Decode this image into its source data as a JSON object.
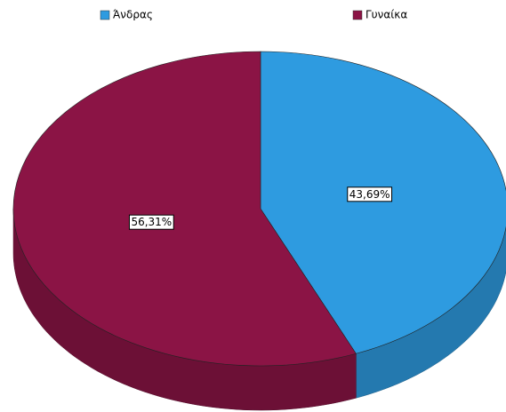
{
  "chart_data": {
    "type": "pie",
    "categories": [
      "Άνδρας",
      "Γυναίκα"
    ],
    "values": [
      43.69,
      56.31
    ],
    "value_labels": [
      "43,69%",
      "56,31%"
    ],
    "colors": [
      "#2e9be0",
      "#8b1445"
    ],
    "legend": "top"
  }
}
